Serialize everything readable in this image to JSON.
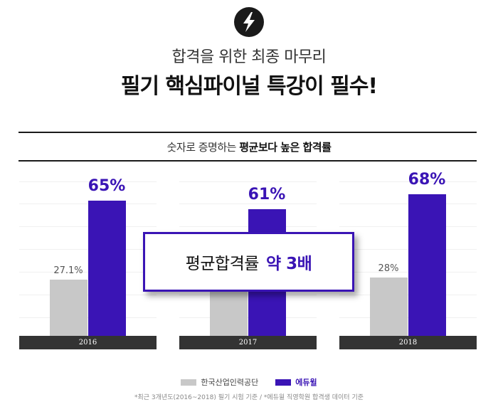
{
  "header": {
    "icon": "lightning-bolt-icon",
    "line1": "합격을 위한 최종 마무리",
    "line2": "필기 핵심파이널 특강이 필수!"
  },
  "subhead": {
    "normal": "숫자로 증명하는",
    "bold": "평균보다 높은 합격률"
  },
  "callout": {
    "text": "평균합격률",
    "highlight": "약 3배"
  },
  "colors": {
    "accent": "#3a14b5",
    "baseline": "#c8c8c8",
    "axis": "#333333"
  },
  "chart_data": {
    "type": "bar",
    "categories": [
      "2016",
      "2017",
      "2018"
    ],
    "series": [
      {
        "name": "한국산업인력공단",
        "values": [
          27.1,
          25,
          28
        ],
        "labels": [
          "27.1%",
          "",
          "28%"
        ]
      },
      {
        "name": "에듀윌",
        "values": [
          65,
          61,
          68
        ],
        "labels": [
          "65%",
          "61%",
          "68%"
        ]
      }
    ],
    "ylim": [
      0,
      80
    ],
    "grid": true,
    "legend": "bottom-center"
  },
  "legend": {
    "items": [
      {
        "label": "한국산업인력공단"
      },
      {
        "label": "에듀윌"
      }
    ]
  },
  "footnote": "*최근 3개년도(2016~2018) 필기 시험 기준 / *에듀윌 직영학원 합격생 데이터 기준"
}
